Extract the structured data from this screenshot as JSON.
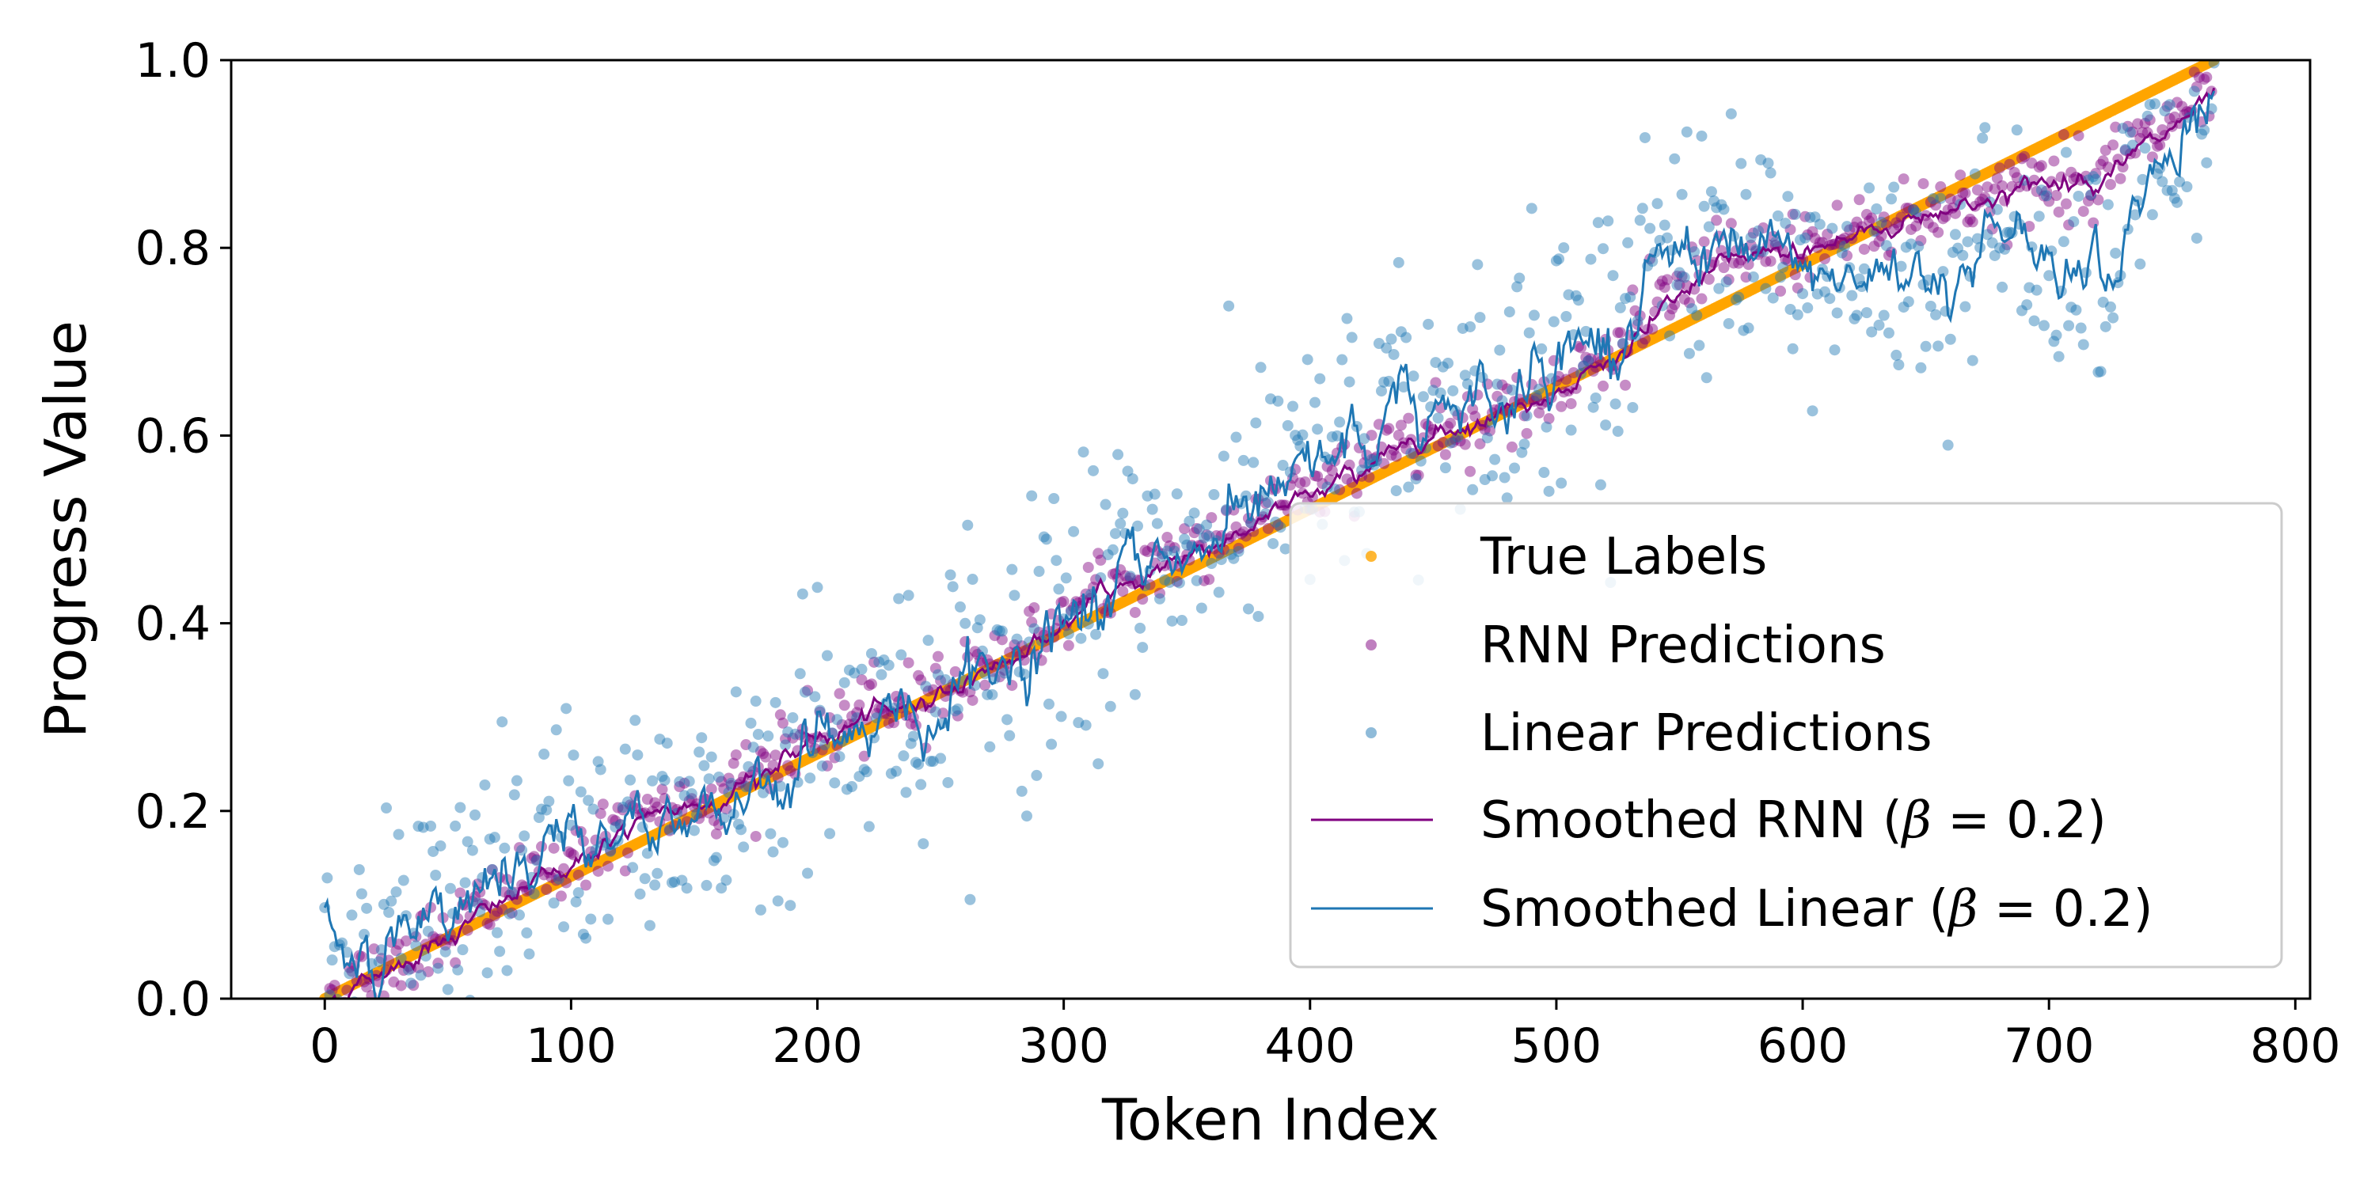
{
  "chart_data": {
    "type": "scatter",
    "title": "",
    "xlabel": "Token Index",
    "ylabel": "Progress Value",
    "xlim": [
      -38,
      806
    ],
    "ylim": [
      0,
      1.0
    ],
    "x_ticks": [
      0,
      100,
      200,
      300,
      400,
      500,
      600,
      700,
      800
    ],
    "x_tick_labels": [
      "0",
      "100",
      "200",
      "300",
      "400",
      "500",
      "600",
      "700",
      "800"
    ],
    "y_ticks": [
      0.0,
      0.2,
      0.4,
      0.6,
      0.8,
      1.0
    ],
    "y_tick_labels": [
      "0.0",
      "0.2",
      "0.4",
      "0.6",
      "0.8",
      "1.0"
    ],
    "legend_position": "lower-right",
    "n_tokens": 768,
    "series": [
      {
        "name": "True Labels",
        "kind": "scatter",
        "color": "#ffa500",
        "label": "True Labels",
        "start": [
          0,
          0.0
        ],
        "end": [
          767,
          1.0
        ]
      },
      {
        "name": "RNN Predictions",
        "kind": "scatter",
        "color": "#800080",
        "label": "RNN Predictions",
        "trend_x": [
          0,
          40,
          80,
          120,
          160,
          200,
          240,
          280,
          320,
          360,
          400,
          440,
          480,
          520,
          560,
          600,
          640,
          680,
          720,
          767
        ],
        "trend_y": [
          0.0,
          0.06,
          0.12,
          0.18,
          0.22,
          0.28,
          0.32,
          0.37,
          0.44,
          0.49,
          0.54,
          0.6,
          0.63,
          0.68,
          0.78,
          0.8,
          0.83,
          0.86,
          0.88,
          0.96
        ]
      },
      {
        "name": "Linear Predictions",
        "kind": "scatter",
        "color": "#1f77b4",
        "label": "Linear Predictions",
        "trend_x": [
          0,
          40,
          80,
          120,
          160,
          200,
          240,
          280,
          320,
          360,
          400,
          440,
          480,
          520,
          560,
          600,
          640,
          680,
          720,
          767
        ],
        "trend_y": [
          0.03,
          0.08,
          0.13,
          0.19,
          0.21,
          0.28,
          0.31,
          0.37,
          0.44,
          0.5,
          0.55,
          0.62,
          0.66,
          0.72,
          0.82,
          0.75,
          0.78,
          0.8,
          0.8,
          0.97
        ]
      },
      {
        "name": "Smoothed RNN (β = 0.2)",
        "kind": "line",
        "color": "#800080",
        "label": "Smoothed RNN (β = 0.2)",
        "beta": 0.2
      },
      {
        "name": "Smoothed Linear (β = 0.2)",
        "kind": "line",
        "color": "#1f77b4",
        "label": "Smoothed Linear (β = 0.2)",
        "beta": 0.2
      }
    ]
  },
  "legend": {
    "true_labels": "True Labels",
    "rnn_predictions": "RNN Predictions",
    "linear_predictions": "Linear Predictions",
    "smoothed_rnn_prefix": "Smoothed RNN (",
    "smoothed_linear_prefix": "Smoothed Linear (",
    "beta_symbol": "β",
    "beta_eq": " = 0.2",
    "suffix": ")"
  }
}
